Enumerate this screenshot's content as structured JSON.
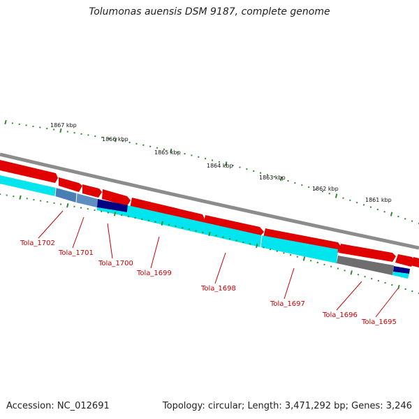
{
  "title": "Tolumonas auensis DSM 9187, complete genome",
  "accession_text": "Accession: NC_012691",
  "summary_text": "Topology: circular; Length: 3,471,292 bp; Genes: 3,246",
  "colors": {
    "backbone": "#8c8c8c",
    "forward_gene": "#ff0000",
    "cds": "#00ffff",
    "trna": "#4a7fb5",
    "rrna": "#000080",
    "other": "#6e6e6e",
    "ticks": "#2e8b2e",
    "gene_label": "#cc0000"
  },
  "kbp_labels": [
    "1867 kbp",
    "1866 kbp",
    "1865 kbp",
    "1864 kbp",
    "1863 kbp",
    "1862 kbp",
    "1861 kbp"
  ],
  "genes": [
    {
      "name": "Tola_1702",
      "kind": "cds"
    },
    {
      "name": "Tola_1701",
      "kind": "trna"
    },
    {
      "name": "Tola_1700",
      "kind": "rrna"
    },
    {
      "name": "Tola_1699",
      "kind": "cds"
    },
    {
      "name": "Tola_1698",
      "kind": "cds"
    },
    {
      "name": "Tola_1697",
      "kind": "cds"
    },
    {
      "name": "Tola_1696",
      "kind": "other"
    },
    {
      "name": "Tola_1695",
      "kind": "cds"
    }
  ]
}
